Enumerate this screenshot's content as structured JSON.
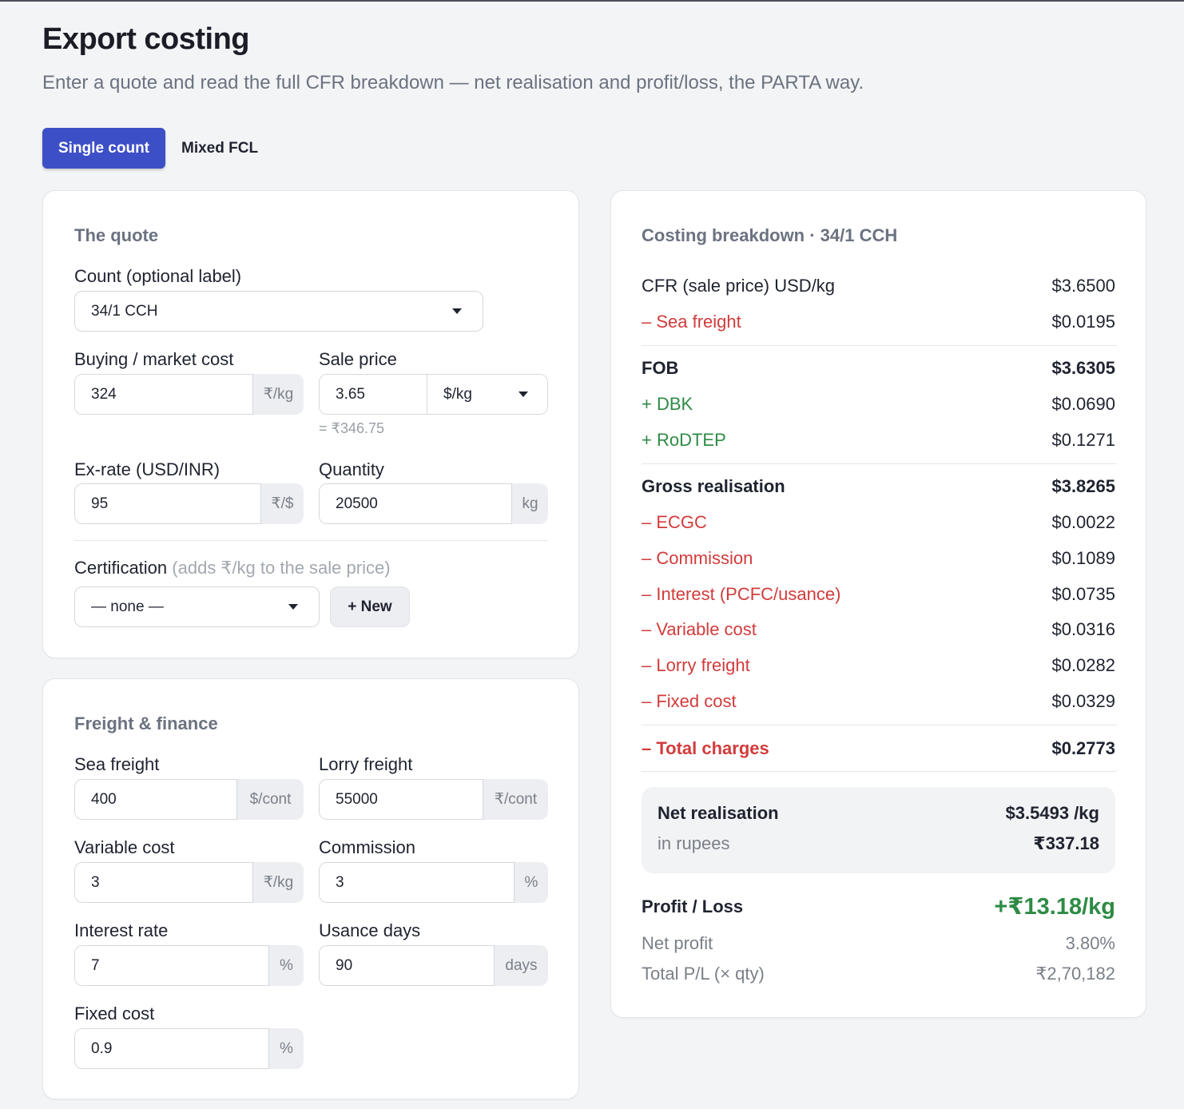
{
  "header": {
    "title": "Export costing",
    "subtitle": "Enter a quote and read the full CFR breakdown — net realisation and profit/loss, the PARTA way."
  },
  "tabs": [
    {
      "label": "Single count",
      "active": true
    },
    {
      "label": "Mixed FCL",
      "active": false
    }
  ],
  "quote": {
    "title": "The quote",
    "count_label": "Count (optional label)",
    "count_value": "34/1 CCH",
    "buying_label": "Buying / market cost",
    "buying_value": "324",
    "buying_unit": "₹/kg",
    "sale_label": "Sale price",
    "sale_value": "3.65",
    "sale_unit": "$/kg",
    "sale_note": "= ₹346.75",
    "exrate_label": "Ex-rate (USD/INR)",
    "exrate_value": "95",
    "exrate_unit": "₹/$",
    "qty_label": "Quantity",
    "qty_value": "20500",
    "qty_unit": "kg",
    "cert_label": "Certification",
    "cert_hint": "(adds ₹/kg to the sale price)",
    "cert_value": "— none —",
    "new_button": "+ New"
  },
  "freight": {
    "title": "Freight & finance",
    "sea_label": "Sea freight",
    "sea_value": "400",
    "sea_unit": "$/cont",
    "lorry_label": "Lorry freight",
    "lorry_value": "55000",
    "lorry_unit": "₹/cont",
    "variable_label": "Variable cost",
    "variable_value": "3",
    "variable_unit": "₹/kg",
    "commission_label": "Commission",
    "commission_value": "3",
    "commission_unit": "%",
    "interest_label": "Interest rate",
    "interest_value": "7",
    "interest_unit": "%",
    "usance_label": "Usance days",
    "usance_value": "90",
    "usance_unit": "days",
    "fixed_label": "Fixed cost",
    "fixed_value": "0.9",
    "fixed_unit": "%"
  },
  "breakdown": {
    "title": "Costing breakdown · 34/1 CCH",
    "rows": [
      {
        "label": "CFR (sale price) USD/kg",
        "value": "$3.6500"
      },
      {
        "label": "– Sea freight",
        "value": "$0.0195"
      },
      {
        "label": "FOB",
        "value": "$3.6305"
      },
      {
        "label": "+ DBK",
        "value": "$0.0690"
      },
      {
        "label": "+ RoDTEP",
        "value": "$0.1271"
      },
      {
        "label": "Gross realisation",
        "value": "$3.8265"
      },
      {
        "label": "– ECGC",
        "value": "$0.0022"
      },
      {
        "label": "– Commission",
        "value": "$0.1089"
      },
      {
        "label": "– Interest (PCFC/usance)",
        "value": "$0.0735"
      },
      {
        "label": "– Variable cost",
        "value": "$0.0316"
      },
      {
        "label": "– Lorry freight",
        "value": "$0.0282"
      },
      {
        "label": "– Fixed cost",
        "value": "$0.0329"
      },
      {
        "label": "– Total charges",
        "value": "$0.2773"
      }
    ],
    "net_label": "Net realisation",
    "net_value": "$3.5493 /kg",
    "rupee_label": "in rupees",
    "rupee_value": "₹337.18",
    "pl_label": "Profit / Loss",
    "pl_value": "+₹13.18/kg",
    "net_profit_label": "Net profit",
    "net_profit_value": "3.80%",
    "total_pl_label": "Total P/L (× qty)",
    "total_pl_value": "₹2,70,182"
  },
  "colors": {
    "accent": "#3d4fc7",
    "negative": "#d23b3b",
    "positive": "#2e8b45"
  }
}
